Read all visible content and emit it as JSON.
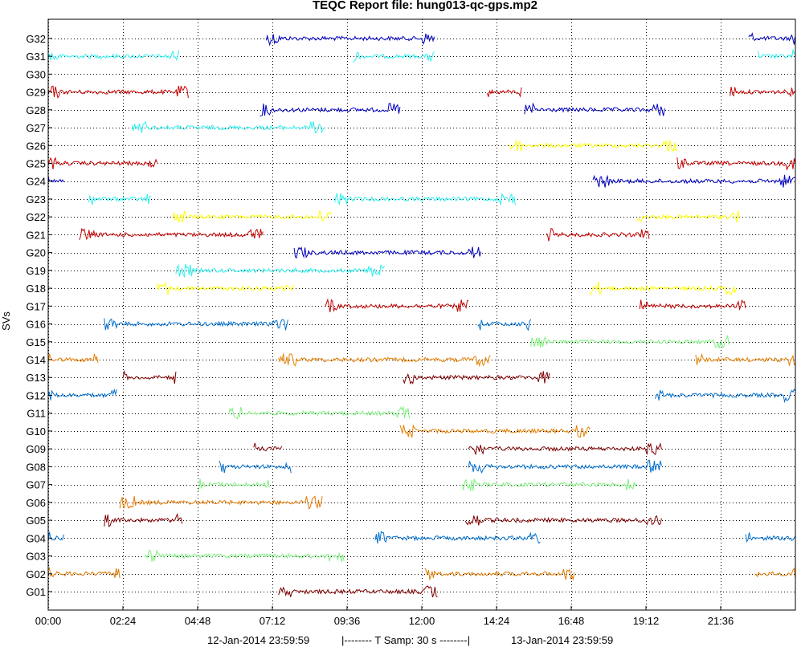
{
  "chart_data": {
    "type": "line",
    "title": "TEQC Report file: hung013-qc-gps.mp2",
    "ylabel": "SVs",
    "xlabel": "",
    "x_ticks": [
      "00:00",
      "02:24",
      "04:48",
      "07:12",
      "09:36",
      "12:00",
      "14:24",
      "16:48",
      "19:12",
      "21:36"
    ],
    "x_tick_hours": [
      0,
      2.4,
      4.8,
      7.2,
      9.6,
      12.0,
      14.4,
      16.8,
      19.2,
      21.6
    ],
    "xlim_hours": [
      0,
      24
    ],
    "y_ticks": [
      "G01",
      "G02",
      "G03",
      "G04",
      "G05",
      "G06",
      "G07",
      "G08",
      "G09",
      "G10",
      "G11",
      "G12",
      "G13",
      "G14",
      "G15",
      "G16",
      "G17",
      "G18",
      "G19",
      "G20",
      "G21",
      "G22",
      "G23",
      "G24",
      "G25",
      "G26",
      "G27",
      "G28",
      "G29",
      "G30",
      "G31",
      "G32"
    ],
    "grid": true,
    "footer": {
      "start": "12-Jan-2014 23:59:59",
      "span": "|--------  T Samp: 30 s  --------|",
      "end": "13-Jan-2014 23:59:59"
    },
    "series": [
      {
        "sv": "G32",
        "segments": [
          [
            7.0,
            12.4
          ],
          [
            22.5,
            24
          ]
        ]
      },
      {
        "sv": "G31",
        "segments": [
          [
            0,
            4.2
          ],
          [
            9.8,
            12.4
          ],
          [
            22.8,
            24
          ]
        ]
      },
      {
        "sv": "G29",
        "segments": [
          [
            0,
            4.5
          ],
          [
            14.1,
            15.2
          ],
          [
            21.9,
            24
          ]
        ]
      },
      {
        "sv": "G28",
        "segments": [
          [
            6.8,
            11.3
          ],
          [
            15.3,
            19.8
          ]
        ]
      },
      {
        "sv": "G27",
        "segments": [
          [
            2.7,
            8.9
          ]
        ]
      },
      {
        "sv": "G26",
        "segments": [
          [
            14.8,
            20.2
          ]
        ]
      },
      {
        "sv": "G25",
        "segments": [
          [
            0,
            3.5
          ],
          [
            20.2,
            24
          ]
        ]
      },
      {
        "sv": "G24",
        "segments": [
          [
            0,
            0.5
          ],
          [
            17.5,
            24
          ]
        ]
      },
      {
        "sv": "G23",
        "segments": [
          [
            1.3,
            3.3
          ],
          [
            9.2,
            15.0
          ]
        ]
      },
      {
        "sv": "G22",
        "segments": [
          [
            4.0,
            9.1
          ],
          [
            18.9,
            22.2
          ]
        ]
      },
      {
        "sv": "G21",
        "segments": [
          [
            1.0,
            6.9
          ],
          [
            16.0,
            19.3
          ]
        ]
      },
      {
        "sv": "G20",
        "segments": [
          [
            7.9,
            13.9
          ]
        ]
      },
      {
        "sv": "G19",
        "segments": [
          [
            4.1,
            10.8
          ]
        ]
      },
      {
        "sv": "G18",
        "segments": [
          [
            3.5,
            7.9
          ],
          [
            17.4,
            22.1
          ]
        ]
      },
      {
        "sv": "G17",
        "segments": [
          [
            8.9,
            13.5
          ],
          [
            19.0,
            22.4
          ]
        ]
      },
      {
        "sv": "G16",
        "segments": [
          [
            1.8,
            7.7
          ],
          [
            13.8,
            15.5
          ]
        ]
      },
      {
        "sv": "G15",
        "segments": [
          [
            15.5,
            21.9
          ]
        ]
      },
      {
        "sv": "G14",
        "segments": [
          [
            0,
            1.6
          ],
          [
            7.4,
            14.2
          ],
          [
            20.8,
            24
          ]
        ]
      },
      {
        "sv": "G13",
        "segments": [
          [
            2.4,
            4.1
          ],
          [
            11.4,
            16.1
          ]
        ]
      },
      {
        "sv": "G12",
        "segments": [
          [
            0,
            2.2
          ],
          [
            19.5,
            24
          ]
        ]
      },
      {
        "sv": "G11",
        "segments": [
          [
            5.8,
            11.6
          ]
        ]
      },
      {
        "sv": "G10",
        "segments": [
          [
            11.3,
            17.4
          ]
        ]
      },
      {
        "sv": "G09",
        "segments": [
          [
            6.6,
            7.5
          ],
          [
            13.5,
            19.7
          ]
        ]
      },
      {
        "sv": "G08",
        "segments": [
          [
            5.5,
            7.8
          ],
          [
            13.5,
            19.7
          ]
        ]
      },
      {
        "sv": "G07",
        "segments": [
          [
            4.8,
            7.1
          ],
          [
            13.3,
            18.9
          ]
        ]
      },
      {
        "sv": "G06",
        "segments": [
          [
            2.3,
            8.8
          ]
        ]
      },
      {
        "sv": "G05",
        "segments": [
          [
            1.8,
            4.3
          ],
          [
            13.4,
            19.7
          ]
        ]
      },
      {
        "sv": "G04",
        "segments": [
          [
            0,
            0.5
          ],
          [
            10.5,
            15.8
          ],
          [
            22.4,
            24
          ]
        ]
      },
      {
        "sv": "G03",
        "segments": [
          [
            3.1,
            9.5
          ]
        ]
      },
      {
        "sv": "G02",
        "segments": [
          [
            0,
            2.3
          ],
          [
            12.1,
            16.9
          ],
          [
            22.7,
            24
          ]
        ]
      },
      {
        "sv": "G01",
        "segments": [
          [
            7.4,
            12.5
          ]
        ]
      }
    ]
  },
  "colors": {
    "G01": "#800000",
    "G02": "#de7a00",
    "G03": "#7ef07e",
    "G04": "#0070d0",
    "G05": "#800000",
    "G06": "#e67a00",
    "G07": "#80f080",
    "G08": "#0070d0",
    "G09": "#800000",
    "G10": "#e68000",
    "G11": "#80f080",
    "G12": "#0070d0",
    "G13": "#800000",
    "G14": "#e68000",
    "G15": "#80f080",
    "G16": "#0070d0",
    "G17": "#c00000",
    "G18": "#ffff00",
    "G19": "#30f0f0",
    "G20": "#0000c0",
    "G21": "#c80000",
    "G22": "#ffff00",
    "G23": "#30f0f0",
    "G24": "#0000c0",
    "G25": "#c80000",
    "G26": "#ffff00",
    "G27": "#30f0f0",
    "G28": "#0000c0",
    "G29": "#c80000",
    "G30": "#ffff00",
    "G31": "#30f0f0",
    "G32": "#0000c0"
  }
}
